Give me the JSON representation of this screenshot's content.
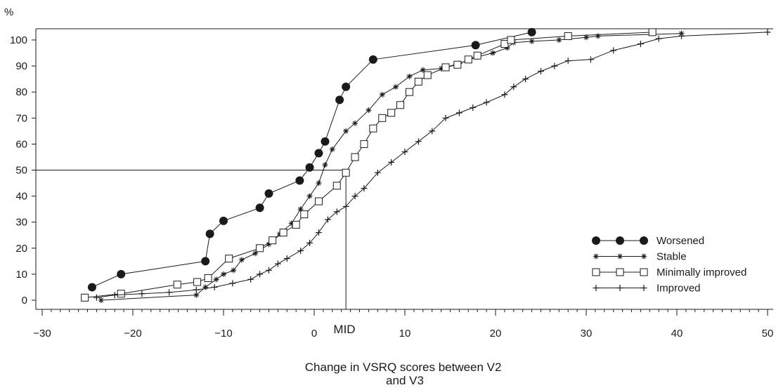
{
  "chart_data": {
    "type": "line",
    "title": "",
    "xlabel": "Change in VSRQ scores between V2 and V3",
    "xlabel_lines": [
      "Change in VSRQ scores between V2",
      "and V3"
    ],
    "ylabel": "%",
    "xlim": [
      -30,
      50
    ],
    "ylim": [
      0,
      100
    ],
    "xticks": [
      -30,
      -20,
      -10,
      0,
      10,
      20,
      30,
      40,
      50
    ],
    "xtick_labels": [
      "−30",
      "−20",
      "−10",
      "0",
      "10",
      "20",
      "30",
      "40",
      "50"
    ],
    "yticks": [
      0,
      10,
      20,
      30,
      40,
      50,
      60,
      70,
      80,
      90,
      100
    ],
    "grid": false,
    "legend_position": "bottom-right",
    "reference_lines": {
      "horizontal_y": 50,
      "vertical_x": 3.5,
      "vertical_label": "MID"
    },
    "series": [
      {
        "name": "Worsened",
        "marker": "filled-circle",
        "points": [
          [
            -24.5,
            5
          ],
          [
            -21.3,
            10
          ],
          [
            -12,
            15
          ],
          [
            -11.5,
            25.5
          ],
          [
            -10,
            30.5
          ],
          [
            -5,
            41
          ],
          [
            -6,
            35.5
          ],
          [
            -1.6,
            46
          ],
          [
            -0.5,
            51
          ],
          [
            0.5,
            56.5
          ],
          [
            1.2,
            61
          ],
          [
            2.8,
            77
          ],
          [
            3.5,
            82
          ],
          [
            6.5,
            92.5
          ],
          [
            17.8,
            98
          ],
          [
            24,
            103
          ]
        ]
      },
      {
        "name": "Stable",
        "marker": "asterisk",
        "points": [
          [
            -23.5,
            0
          ],
          [
            -13,
            2
          ],
          [
            -12,
            5
          ],
          [
            -10.8,
            8
          ],
          [
            -10,
            10
          ],
          [
            -8.9,
            11.5
          ],
          [
            -8,
            15.5
          ],
          [
            -6.5,
            18
          ],
          [
            -5,
            21.5
          ],
          [
            -3.8,
            25.5
          ],
          [
            -2.5,
            29.5
          ],
          [
            -1.5,
            35
          ],
          [
            -0.5,
            40
          ],
          [
            0.5,
            45
          ],
          [
            1.2,
            52
          ],
          [
            2,
            58
          ],
          [
            3.5,
            65
          ],
          [
            4.5,
            68
          ],
          [
            6,
            73
          ],
          [
            7.5,
            79
          ],
          [
            9,
            82
          ],
          [
            10.5,
            86
          ],
          [
            12,
            88.5
          ],
          [
            14,
            89
          ],
          [
            16,
            91
          ],
          [
            18,
            93.5
          ],
          [
            19.7,
            95
          ],
          [
            21.3,
            97
          ],
          [
            22,
            99
          ],
          [
            24,
            99.5
          ],
          [
            27,
            100
          ],
          [
            30,
            101
          ],
          [
            31.3,
            101.5
          ],
          [
            40.5,
            102.5
          ]
        ]
      },
      {
        "name": "Minimally improved",
        "marker": "open-square",
        "points": [
          [
            -25.3,
            1
          ],
          [
            -21.3,
            2.5
          ],
          [
            -15.1,
            6
          ],
          [
            -12.9,
            7
          ],
          [
            -11.7,
            8.5
          ],
          [
            -9.4,
            16
          ],
          [
            -6,
            20
          ],
          [
            -4.6,
            23
          ],
          [
            -3.4,
            26
          ],
          [
            -2,
            29
          ],
          [
            -1.1,
            33
          ],
          [
            0.5,
            38
          ],
          [
            2.5,
            44
          ],
          [
            3.5,
            49
          ],
          [
            4.5,
            55
          ],
          [
            5.5,
            60
          ],
          [
            6.5,
            66
          ],
          [
            7.5,
            70
          ],
          [
            8.5,
            72
          ],
          [
            9.5,
            75
          ],
          [
            10.5,
            80
          ],
          [
            11.5,
            84
          ],
          [
            12.5,
            86.5
          ],
          [
            14.5,
            89.5
          ],
          [
            15.8,
            90.5
          ],
          [
            17,
            92.5
          ],
          [
            18,
            94
          ],
          [
            21,
            98.5
          ],
          [
            21.7,
            100
          ],
          [
            28,
            101.5
          ],
          [
            37.3,
            103
          ]
        ]
      },
      {
        "name": "Improved",
        "marker": "plus",
        "points": [
          [
            -24,
            1
          ],
          [
            -22,
            2
          ],
          [
            -19,
            2.5
          ],
          [
            -16,
            3
          ],
          [
            -13,
            4
          ],
          [
            -11,
            5
          ],
          [
            -9,
            6.5
          ],
          [
            -7,
            8
          ],
          [
            -6,
            10
          ],
          [
            -5,
            11.5
          ],
          [
            -4,
            14
          ],
          [
            -3,
            16
          ],
          [
            -1.5,
            19
          ],
          [
            -0.5,
            22
          ],
          [
            0.5,
            26
          ],
          [
            1.5,
            31
          ],
          [
            2.5,
            34
          ],
          [
            3.5,
            36
          ],
          [
            4.5,
            40
          ],
          [
            5.5,
            43
          ],
          [
            7,
            49
          ],
          [
            8.5,
            53
          ],
          [
            10,
            57
          ],
          [
            11.5,
            61
          ],
          [
            13,
            65
          ],
          [
            14.5,
            70
          ],
          [
            16,
            72
          ],
          [
            17.5,
            74
          ],
          [
            19,
            76
          ],
          [
            21,
            79
          ],
          [
            22,
            82
          ],
          [
            23.3,
            85
          ],
          [
            25,
            88
          ],
          [
            26.5,
            90
          ],
          [
            28,
            92
          ],
          [
            30.5,
            92.5
          ],
          [
            33,
            96
          ],
          [
            36,
            98.5
          ],
          [
            38,
            100.5
          ],
          [
            40.5,
            101.5
          ],
          [
            50,
            103
          ]
        ]
      }
    ]
  }
}
